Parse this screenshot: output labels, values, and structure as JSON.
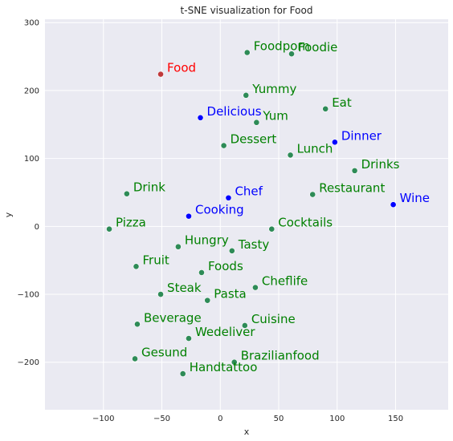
{
  "chart_data": {
    "type": "scatter",
    "title": "t-SNE visualization for Food",
    "xlabel": "x",
    "ylabel": "y",
    "xlim": [
      -150,
      195
    ],
    "ylim": [
      -270,
      305
    ],
    "xticks": [
      -100,
      -50,
      0,
      50,
      100,
      150
    ],
    "yticks": [
      -200,
      -100,
      0,
      100,
      200,
      300
    ],
    "grid": true,
    "colors": {
      "background": "#eaeaf2",
      "grid": "#ffffff",
      "green_label": "#008000",
      "green_point": "#2e8b57",
      "blue": "#0000ff",
      "red": "#ff0000",
      "red_point": "#c0393b"
    },
    "points": [
      {
        "label": "Food",
        "x": -51,
        "y": 224,
        "color": "red"
      },
      {
        "label": "Foodporn",
        "x": 23,
        "y": 256,
        "color": "green"
      },
      {
        "label": "Foodie",
        "x": 61,
        "y": 254,
        "color": "green"
      },
      {
        "label": "Yummy",
        "x": 22,
        "y": 193,
        "color": "green"
      },
      {
        "label": "Eat",
        "x": 90,
        "y": 173,
        "color": "green"
      },
      {
        "label": "Delicious",
        "x": -17,
        "y": 160,
        "color": "blue"
      },
      {
        "label": "Yum",
        "x": 31,
        "y": 153,
        "color": "green"
      },
      {
        "label": "Dinner",
        "x": 98,
        "y": 124,
        "color": "blue"
      },
      {
        "label": "Dessert",
        "x": 3,
        "y": 119,
        "color": "green"
      },
      {
        "label": "Lunch",
        "x": 60,
        "y": 105,
        "color": "green"
      },
      {
        "label": "Drinks",
        "x": 115,
        "y": 82,
        "color": "green"
      },
      {
        "label": "Drink",
        "x": -80,
        "y": 48,
        "color": "green"
      },
      {
        "label": "Restaurant",
        "x": 79,
        "y": 47,
        "color": "green"
      },
      {
        "label": "Chef",
        "x": 7,
        "y": 42,
        "color": "blue"
      },
      {
        "label": "Wine",
        "x": 148,
        "y": 32,
        "color": "blue"
      },
      {
        "label": "Cooking",
        "x": -27,
        "y": 15,
        "color": "blue"
      },
      {
        "label": "Pizza",
        "x": -95,
        "y": -4,
        "color": "green"
      },
      {
        "label": "Cocktails",
        "x": 44,
        "y": -4,
        "color": "green"
      },
      {
        "label": "Hungry",
        "x": -36,
        "y": -30,
        "color": "green"
      },
      {
        "label": "Tasty",
        "x": 10,
        "y": -36,
        "color": "green"
      },
      {
        "label": "Fruit",
        "x": -72,
        "y": -59,
        "color": "green"
      },
      {
        "label": "Foods",
        "x": -16,
        "y": -68,
        "color": "green"
      },
      {
        "label": "Cheflife",
        "x": 30,
        "y": -90,
        "color": "green"
      },
      {
        "label": "Steak",
        "x": -51,
        "y": -100,
        "color": "green"
      },
      {
        "label": "Pasta",
        "x": -11,
        "y": -109,
        "color": "green"
      },
      {
        "label": "Beverage",
        "x": -71,
        "y": -144,
        "color": "green"
      },
      {
        "label": "Cuisine",
        "x": 21,
        "y": -146,
        "color": "green"
      },
      {
        "label": "Wedeliver",
        "x": -27,
        "y": -165,
        "color": "green"
      },
      {
        "label": "Gesund",
        "x": -73,
        "y": -195,
        "color": "green"
      },
      {
        "label": "Brazilianfood",
        "x": 12,
        "y": -200,
        "color": "green"
      },
      {
        "label": "Handtattoo",
        "x": -32,
        "y": -217,
        "color": "green"
      }
    ]
  }
}
